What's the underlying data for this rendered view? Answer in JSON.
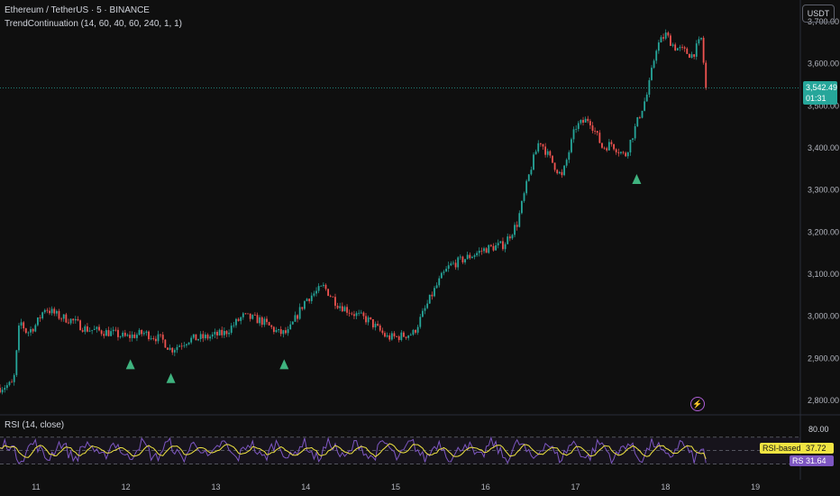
{
  "header": {
    "symbol": "Ethereum / TetherUS · 5 · BINANCE",
    "indicator": "TrendContinuation (14, 60, 40, 60, 240, 1, 1)"
  },
  "currency": "USDT",
  "price_tag": {
    "price": "3,542.49",
    "countdown": "01:31"
  },
  "rsi": {
    "title": "RSI (14, close)",
    "ma_label": "RSI-based MA",
    "ma_value": "37.72",
    "rsi_label": "RSI",
    "rsi_value": "31.64",
    "level_label": "80.00"
  },
  "colors": {
    "up": "#26a69a",
    "down": "#ef5350",
    "signal": "#3fb37f",
    "rsi_line": "#7e57c2",
    "rsi_ma": "#f0e442",
    "price_line": "#26a69a"
  },
  "chart_data": {
    "type": "line",
    "title": "Ethereum / TetherUS · 5 · BINANCE",
    "xlabel": "",
    "ylabel": "",
    "x_ticks": [
      "11",
      "12",
      "13",
      "14",
      "15",
      "16",
      "17",
      "18",
      "19"
    ],
    "y_ticks": [
      "2,800.00",
      "2,900.00",
      "3,000.00",
      "3,100.00",
      "3,200.00",
      "3,300.00",
      "3,400.00",
      "3,500.00",
      "3,600.00",
      "3,700.00"
    ],
    "ylim": [
      2770,
      3730
    ],
    "xlim": [
      10.6,
      19.5
    ],
    "series": [
      {
        "x": [
          10.6,
          10.75,
          10.82,
          10.9,
          11.0,
          11.1,
          11.25,
          11.4,
          11.55,
          11.7,
          11.85,
          12.0,
          12.2,
          12.4,
          12.5,
          12.7,
          12.9,
          13.1,
          13.3,
          13.5,
          13.7,
          13.8,
          14.0,
          14.2,
          14.35,
          14.5,
          14.7,
          14.9,
          15.0,
          15.2,
          15.4,
          15.5,
          15.6,
          15.8,
          16.0,
          16.2,
          16.35,
          16.5,
          16.6,
          16.7,
          16.85,
          17.0,
          17.15,
          17.3,
          17.4,
          17.55,
          17.7,
          17.8,
          17.9,
          18.0,
          18.1,
          18.2,
          18.3,
          18.4,
          18.45
        ],
        "values": [
          2830,
          2840,
          2990,
          2960,
          2980,
          3020,
          3000,
          2990,
          2970,
          2965,
          2960,
          2950,
          2960,
          2945,
          2920,
          2945,
          2950,
          2960,
          3000,
          2990,
          2960,
          2960,
          3040,
          3070,
          3030,
          3010,
          2990,
          2950,
          2950,
          2960,
          3050,
          3090,
          3120,
          3140,
          3160,
          3170,
          3220,
          3350,
          3420,
          3380,
          3330,
          3450,
          3470,
          3400,
          3410,
          3380,
          3470,
          3530,
          3640,
          3670,
          3640,
          3630,
          3620,
          3660,
          3540
        ]
      }
    ],
    "current_price": 3542.49,
    "signals": [
      {
        "x": 12.05,
        "value": 2885
      },
      {
        "x": 12.5,
        "value": 2852
      },
      {
        "x": 13.76,
        "value": 2885
      },
      {
        "x": 17.68,
        "value": 3325
      }
    ],
    "rsi_panel": {
      "ylim": [
        0,
        100
      ],
      "levels": [
        30,
        50,
        70
      ],
      "upper_level_label": 80,
      "rsi_last": 31.64,
      "ma_last": 37.72
    },
    "grid": false,
    "legend": "none"
  }
}
